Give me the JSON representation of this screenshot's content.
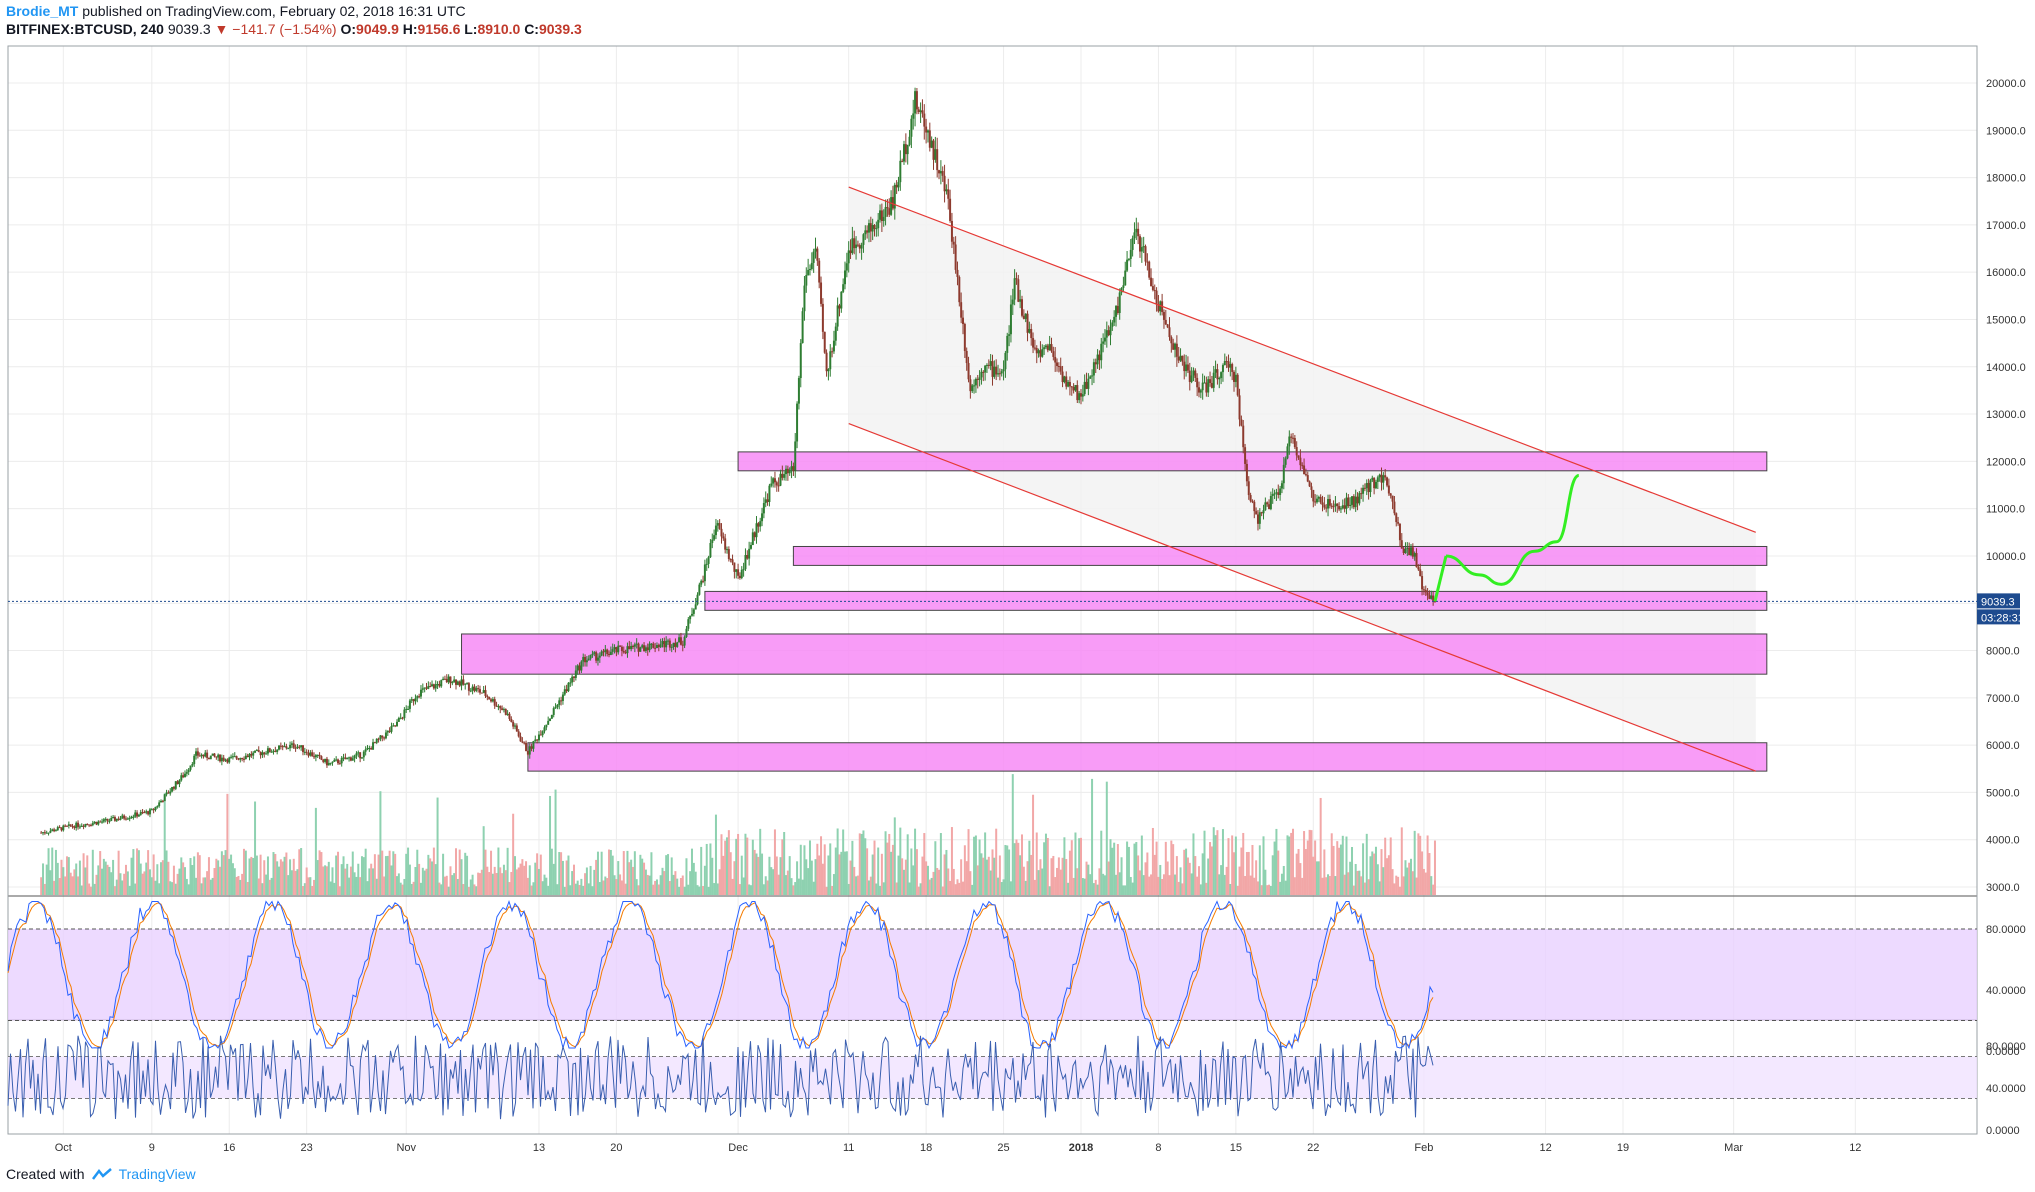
{
  "header": {
    "author": "Brodie_MT",
    "published_text": "published on TradingView.com, February 02, 2018 16:31 UTC",
    "symbol": "BITFINEX:BTCUSD, 240",
    "last": "9039.3",
    "change": "▼ −141.7 (−1.54%)",
    "ohlc_labels": {
      "o": "O:",
      "h": "H:",
      "l": "L:",
      "c": "C:"
    },
    "ohlc_values": {
      "o": "9049.9",
      "h": "9156.6",
      "l": "8910.0",
      "c": "9039.3"
    }
  },
  "footer": {
    "created_with": "Created with",
    "brand": "TradingView"
  },
  "colors": {
    "up": "#2e7d32",
    "down": "#8d3a2e",
    "zone": "#f78bf6",
    "channel": "#e53935",
    "projection": "#33ee22",
    "volume_up": "#8ed1b0",
    "volume_down": "#f2a7a7"
  },
  "chart_data": [
    {
      "type": "candlestick",
      "title": "",
      "x_labels": [
        "Oct",
        "9",
        "16",
        "23",
        "Nov",
        "13",
        "20",
        "Dec",
        "11",
        "18",
        "25",
        "2018",
        "8",
        "15",
        "22",
        "Feb",
        "12",
        "19",
        "Mar",
        "12"
      ],
      "y_ticks": [
        "20000.0",
        "19000.0",
        "18000.0",
        "17000.0",
        "16000.0",
        "15000.0",
        "14000.0",
        "13000.0",
        "12000.0",
        "11000.0",
        "10000.0",
        "9000.0",
        "8000.0",
        "7000.0",
        "6000.0",
        "5000.0",
        "4000.0",
        "3000.0"
      ],
      "ylim": [
        2800,
        20800
      ],
      "current_price": "9039.3",
      "countdown": "03:28:31",
      "price_path": [
        [
          "2017-09-29",
          4150
        ],
        [
          "2017-10-02",
          4300
        ],
        [
          "2017-10-05",
          4400
        ],
        [
          "2017-10-09",
          4600
        ],
        [
          "2017-10-12",
          5400
        ],
        [
          "2017-10-13",
          5800
        ],
        [
          "2017-10-16",
          5700
        ],
        [
          "2017-10-20",
          5900
        ],
        [
          "2017-10-22",
          6000
        ],
        [
          "2017-10-25",
          5600
        ],
        [
          "2017-10-28",
          5800
        ],
        [
          "2017-10-31",
          6400
        ],
        [
          "2017-11-02",
          7100
        ],
        [
          "2017-11-05",
          7400
        ],
        [
          "2017-11-08",
          7100
        ],
        [
          "2017-11-10",
          6700
        ],
        [
          "2017-11-12",
          5850
        ],
        [
          "2017-11-14",
          6600
        ],
        [
          "2017-11-17",
          7800
        ],
        [
          "2017-11-20",
          8000
        ],
        [
          "2017-11-23",
          8100
        ],
        [
          "2017-11-26",
          8200
        ],
        [
          "2017-11-28",
          9700
        ],
        [
          "2017-11-29",
          10700
        ],
        [
          "2017-12-01",
          9500
        ],
        [
          "2017-12-04",
          11500
        ],
        [
          "2017-12-06",
          11800
        ],
        [
          "2017-12-07",
          15800
        ],
        [
          "2017-12-08",
          16500
        ],
        [
          "2017-12-09",
          13800
        ],
        [
          "2017-12-11",
          16500
        ],
        [
          "2017-12-13",
          16900
        ],
        [
          "2017-12-15",
          17500
        ],
        [
          "2017-12-17",
          19600
        ],
        [
          "2017-12-18",
          19100
        ],
        [
          "2017-12-20",
          17500
        ],
        [
          "2017-12-22",
          13500
        ],
        [
          "2017-12-23",
          14000
        ],
        [
          "2017-12-25",
          13900
        ],
        [
          "2017-12-26",
          15800
        ],
        [
          "2017-12-28",
          14200
        ],
        [
          "2017-12-29",
          14500
        ],
        [
          "2017-12-31",
          13500
        ],
        [
          "2018-01-01",
          13400
        ],
        [
          "2018-01-04",
          15000
        ],
        [
          "2018-01-06",
          16900
        ],
        [
          "2018-01-08",
          15300
        ],
        [
          "2018-01-10",
          14100
        ],
        [
          "2018-01-12",
          13500
        ],
        [
          "2018-01-14",
          14000
        ],
        [
          "2018-01-15",
          13800
        ],
        [
          "2018-01-16",
          11500
        ],
        [
          "2018-01-17",
          10800
        ],
        [
          "2018-01-19",
          11400
        ],
        [
          "2018-01-20",
          12600
        ],
        [
          "2018-01-22",
          11200
        ],
        [
          "2018-01-24",
          11000
        ],
        [
          "2018-01-26",
          11200
        ],
        [
          "2018-01-28",
          11700
        ],
        [
          "2018-01-29",
          11400
        ],
        [
          "2018-01-30",
          10200
        ],
        [
          "2018-01-31",
          10100
        ],
        [
          "2018-02-01",
          9200
        ],
        [
          "2018-02-02",
          9039
        ]
      ],
      "zones": [
        [
          11800,
          12200
        ],
        [
          9800,
          10200
        ],
        [
          8850,
          9250
        ],
        [
          7500,
          8350
        ],
        [
          5450,
          6050
        ]
      ],
      "channel_upper": [
        [
          "2017-12-11",
          17800
        ],
        [
          "2018-03-03",
          10500
        ]
      ],
      "channel_lower": [
        [
          "2017-12-11",
          12800
        ],
        [
          "2018-03-03",
          5450
        ]
      ],
      "projection": [
        [
          "2018-02-03",
          10000
        ],
        [
          "2018-02-06",
          9600
        ],
        [
          "2018-02-08",
          9400
        ],
        [
          "2018-02-11",
          10100
        ],
        [
          "2018-02-13",
          10300
        ],
        [
          "2018-02-15",
          11700
        ]
      ]
    },
    {
      "type": "line",
      "title": "",
      "y_ticks": [
        "80.0000",
        "40.0000",
        "0.0000"
      ],
      "ylim": [
        -5,
        100
      ],
      "band": [
        20,
        80
      ],
      "series_count": 2
    },
    {
      "type": "line",
      "title": "",
      "y_ticks": [
        "80.0000",
        "40.0000",
        "0.0000"
      ],
      "ylim": [
        -5,
        100
      ],
      "band": [
        30,
        70
      ],
      "series_count": 1
    }
  ]
}
